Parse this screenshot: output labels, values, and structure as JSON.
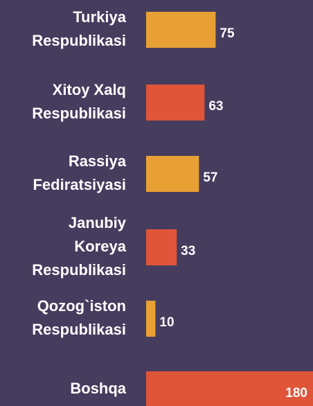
{
  "chart_data": {
    "type": "bar",
    "orientation": "horizontal",
    "categories": [
      "Turkiya Respublikasi",
      "Xitoy Xalq Respublikasi",
      "Rassiya Fediratsiyasi",
      "Janubiy Koreya Respublikasi",
      "Qozog`iston Respublikasi",
      "Boshqa"
    ],
    "values": [
      75,
      63,
      57,
      33,
      10,
      180
    ],
    "colors": [
      "#e8a035",
      "#e0553a",
      "#e8a035",
      "#e0553a",
      "#e8a035",
      "#e0553a"
    ]
  }
}
